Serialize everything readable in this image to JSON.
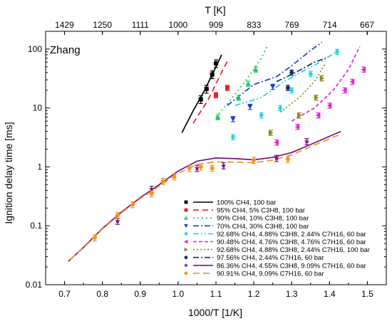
{
  "chart_data": {
    "type": "scatter",
    "panel_label": "Zhang",
    "xlabel": "1000/T [1/K]",
    "ylabel": "Ignition delay time [ms]",
    "top_xlabel": "T [K]",
    "xlim": [
      0.65,
      1.55
    ],
    "ylim": [
      0.01,
      200
    ],
    "y_scale": "log",
    "x_ticks": [
      0.7,
      0.8,
      0.9,
      1.0,
      1.1,
      1.2,
      1.3,
      1.4,
      1.5
    ],
    "x_tick_labels": [
      "0.7",
      "0.8",
      "0.9",
      "1.0",
      "1.1",
      "1.2",
      "1.3",
      "1.4",
      "1.5"
    ],
    "y_ticks": [
      0.01,
      0.1,
      1,
      10,
      100
    ],
    "y_tick_labels": [
      "0.01",
      "0.1",
      "1",
      "10",
      "100"
    ],
    "top_ticks": [
      1429,
      1250,
      1111,
      1000,
      909,
      833,
      769,
      714,
      667
    ],
    "top_tick_labels": [
      "1429",
      "1250",
      "1111",
      "1000",
      "909",
      "833",
      "769",
      "714",
      "667"
    ],
    "legend_position": "bottom-right",
    "series": [
      {
        "name": "100% CH4, 100 bar",
        "color": "#000000",
        "marker": "square",
        "dash": "solid",
        "points": [
          [
            1.06,
            14
          ],
          [
            1.075,
            21
          ],
          [
            1.09,
            37
          ],
          [
            1.1,
            57
          ]
        ],
        "errors": [
          0.15,
          0.15,
          0.15,
          0.15
        ],
        "line": [
          [
            1.01,
            3.8
          ],
          [
            1.04,
            9
          ],
          [
            1.07,
            20
          ],
          [
            1.1,
            50
          ],
          [
            1.115,
            80
          ]
        ]
      },
      {
        "name": "95% CH4, 5% C3H8, 100 bar",
        "color": "#e8202a",
        "marker": "square",
        "dash": "8,5",
        "points": [
          [
            1.1,
            16.5
          ],
          [
            1.13,
            22
          ]
        ],
        "errors": [
          0.1,
          0.1
        ],
        "line": [
          [
            1.04,
            5.5
          ],
          [
            1.08,
            14
          ],
          [
            1.11,
            35
          ],
          [
            1.13,
            62
          ]
        ]
      },
      {
        "name": "90% CH4, 10% C3H8, 100 bar",
        "color": "#22c55e",
        "marker": "triangle-up",
        "dash": "2,4",
        "points": [
          [
            1.105,
            7
          ],
          [
            1.16,
            15
          ],
          [
            1.185,
            26
          ],
          [
            1.205,
            45
          ]
        ],
        "errors": [
          0.1,
          0.1,
          0.1,
          0.1
        ],
        "line": [
          [
            1.1,
            7
          ],
          [
            1.14,
            14
          ],
          [
            1.18,
            30
          ],
          [
            1.22,
            70
          ],
          [
            1.235,
            110
          ]
        ]
      },
      {
        "name": "70% CH4, 30% C3H8, 100 bar",
        "color": "#1d3fd1",
        "marker": "triangle-down",
        "dash": "8,3,2,3",
        "points": [
          [
            1.145,
            6.5
          ],
          [
            1.19,
            10.5
          ],
          [
            1.25,
            23
          ]
        ],
        "errors": [
          0.1,
          0.1,
          0.1
        ],
        "line": [
          [
            1.13,
            11
          ],
          [
            1.2,
            25
          ],
          [
            1.26,
            34
          ],
          [
            1.3,
            52
          ],
          [
            1.35,
            95
          ],
          [
            1.38,
            130
          ]
        ]
      },
      {
        "name": "92.68% CH4, 4.88% C3H8, 2.44% C7H16, 60 bar",
        "color": "#22d3e6",
        "marker": "diamond",
        "dash": "8,3,2,3,2,3",
        "points": [
          [
            1.145,
            3.2
          ],
          [
            1.22,
            7.5
          ],
          [
            1.27,
            10
          ],
          [
            1.3,
            20
          ],
          [
            1.35,
            38
          ],
          [
            1.42,
            90
          ]
        ],
        "errors": [
          0.1,
          0.1,
          0.1,
          0.1,
          0.1,
          0.1
        ],
        "line": [
          [
            1.15,
            11
          ],
          [
            1.22,
            15
          ],
          [
            1.28,
            28
          ],
          [
            1.34,
            46
          ],
          [
            1.38,
            62
          ],
          [
            1.42,
            92
          ]
        ]
      },
      {
        "name": "90.48% CH4, 4.76% C3H8, 4.76% C7H16, 60 bar",
        "color": "#e025d6",
        "marker": "triangle-left",
        "dash": "5,3",
        "points": [
          [
            1.26,
            2.6
          ],
          [
            1.315,
            4.8
          ],
          [
            1.37,
            7.5
          ],
          [
            1.4,
            11
          ],
          [
            1.44,
            20
          ],
          [
            1.46,
            28
          ],
          [
            1.49,
            45
          ]
        ],
        "errors": [
          0.1,
          0.1,
          0.1,
          0.1,
          0.1,
          0.1,
          0.1
        ],
        "line": [
          [
            1.3,
            6
          ],
          [
            1.36,
            10
          ],
          [
            1.41,
            20
          ],
          [
            1.45,
            45
          ],
          [
            1.48,
            110
          ]
        ]
      },
      {
        "name": "92.68% CH4, 4.88% C3H8, 2.44% C7H16, 100 bar",
        "color": "#8a8a1a",
        "marker": "triangle-right",
        "dash": "2,3",
        "points": [
          [
            1.245,
            3.8
          ],
          [
            1.32,
            7.5
          ],
          [
            1.365,
            15
          ],
          [
            1.38,
            32
          ]
        ],
        "errors": [
          0.1,
          0.1,
          0.1,
          0.1
        ],
        "line": [
          [
            1.27,
            8.5
          ],
          [
            1.32,
            15
          ],
          [
            1.36,
            28
          ],
          [
            1.39,
            58
          ]
        ]
      },
      {
        "name": "97.56% CH4, 2.44% C7H16, 60 bar",
        "color": "#162a7a",
        "marker": "circle",
        "dash": "8,3,2,3",
        "points": [
          [
            1.29,
            22
          ],
          [
            1.3,
            40
          ]
        ],
        "errors": [
          0.1,
          0.1
        ],
        "line": [
          [
            1.26,
            28
          ],
          [
            1.31,
            40
          ],
          [
            1.36,
            60
          ],
          [
            1.39,
            70
          ]
        ]
      },
      {
        "name": "86.36% CH4, 4.55% C3H8, 9.09% C7H16, 60 bar",
        "color": "#7a1080",
        "marker": "star",
        "dash": "solid",
        "points": [
          [
            0.84,
            0.12
          ],
          [
            0.93,
            0.42
          ],
          [
            1.05,
            0.95
          ],
          [
            1.12,
            1.05
          ],
          [
            1.26,
            1.4
          ],
          [
            1.34,
            2.7
          ]
        ],
        "errors": [
          0.12,
          0.12,
          0.12,
          0.12,
          0.12,
          0.12
        ],
        "line": [
          [
            0.71,
            0.025
          ],
          [
            0.75,
            0.043
          ],
          [
            0.8,
            0.09
          ],
          [
            0.85,
            0.17
          ],
          [
            0.9,
            0.3
          ],
          [
            0.95,
            0.5
          ],
          [
            1.0,
            0.85
          ],
          [
            1.05,
            1.25
          ],
          [
            1.1,
            1.42
          ],
          [
            1.15,
            1.38
          ],
          [
            1.2,
            1.32
          ],
          [
            1.25,
            1.45
          ],
          [
            1.3,
            1.75
          ],
          [
            1.35,
            2.4
          ],
          [
            1.4,
            3.3
          ],
          [
            1.43,
            4.0
          ]
        ]
      },
      {
        "name": "90.91% CH4, 9.09% C7H16, 60 bar",
        "color": "#f29422",
        "marker": "circle",
        "dash": "9,5",
        "points": [
          [
            0.78,
            0.063
          ],
          [
            0.84,
            0.15
          ],
          [
            0.88,
            0.23
          ],
          [
            0.93,
            0.35
          ],
          [
            0.96,
            0.57
          ],
          [
            0.99,
            0.68
          ],
          [
            1.03,
            0.95
          ],
          [
            1.06,
            1.0
          ],
          [
            1.09,
            0.95
          ],
          [
            1.2,
            1.3
          ],
          [
            1.29,
            1.35
          ]
        ],
        "errors": [
          0.12,
          0.12,
          0.12,
          0.12,
          0.12,
          0.12,
          0.12,
          0.12,
          0.12,
          0.12,
          0.12
        ],
        "line": [
          [
            0.715,
            0.027
          ],
          [
            0.75,
            0.042
          ],
          [
            0.8,
            0.088
          ],
          [
            0.85,
            0.165
          ],
          [
            0.9,
            0.29
          ],
          [
            0.95,
            0.47
          ],
          [
            1.0,
            0.78
          ],
          [
            1.05,
            1.1
          ],
          [
            1.1,
            1.22
          ],
          [
            1.15,
            1.2
          ],
          [
            1.2,
            1.18
          ],
          [
            1.25,
            1.3
          ],
          [
            1.3,
            1.6
          ],
          [
            1.35,
            2.2
          ],
          [
            1.4,
            3.0
          ],
          [
            1.43,
            3.6
          ]
        ]
      }
    ]
  }
}
